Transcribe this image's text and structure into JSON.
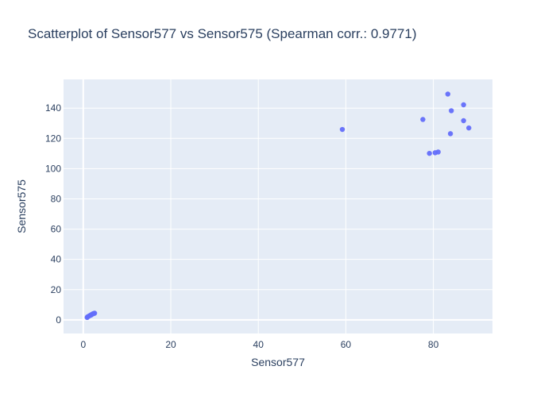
{
  "chart_data": {
    "type": "scatter",
    "title": "Scatterplot of Sensor577 vs Sensor575 (Spearman corr.: 0.9771)",
    "xlabel": "Sensor577",
    "ylabel": "Sensor575",
    "xlim": [
      -4.5,
      93.5
    ],
    "ylim": [
      -9,
      159
    ],
    "x_ticks": [
      0,
      20,
      40,
      60,
      80
    ],
    "y_ticks": [
      0,
      20,
      40,
      60,
      80,
      100,
      120,
      140
    ],
    "grid": true,
    "legend": "none",
    "marker_color": "#636efa",
    "plot_bgcolor": "#e5ecf6",
    "points": [
      {
        "x": 83.3,
        "y": 149.3
      },
      {
        "x": 86.9,
        "y": 142.2
      },
      {
        "x": 84.1,
        "y": 138.3
      },
      {
        "x": 86.9,
        "y": 131.7
      },
      {
        "x": 77.6,
        "y": 132.5
      },
      {
        "x": 88.1,
        "y": 126.9
      },
      {
        "x": 59.2,
        "y": 125.9
      },
      {
        "x": 83.9,
        "y": 123.1
      },
      {
        "x": 81.1,
        "y": 111.0
      },
      {
        "x": 80.4,
        "y": 110.5
      },
      {
        "x": 79.1,
        "y": 110.1
      },
      {
        "x": 2.6,
        "y": 4.4
      },
      {
        "x": 2.2,
        "y": 4.0
      },
      {
        "x": 1.9,
        "y": 3.5
      },
      {
        "x": 1.6,
        "y": 3.0
      },
      {
        "x": 1.3,
        "y": 2.5
      },
      {
        "x": 1.0,
        "y": 2.0
      },
      {
        "x": 0.9,
        "y": 1.6
      },
      {
        "x": 2.4,
        "y": 4.2
      },
      {
        "x": 1.8,
        "y": 3.2
      }
    ]
  }
}
